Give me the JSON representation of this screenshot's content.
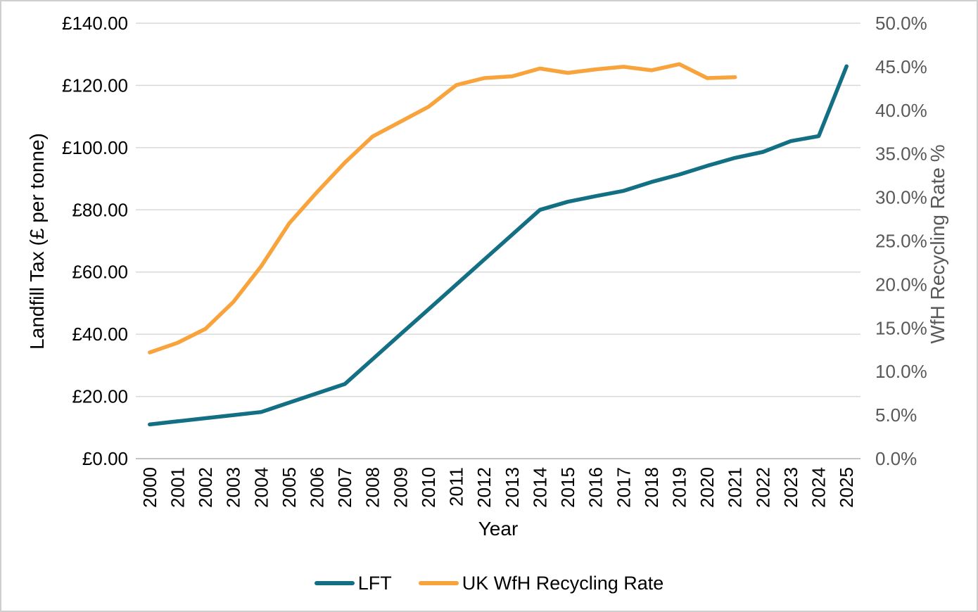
{
  "chart_data": {
    "type": "line",
    "x_categories": [
      "2000",
      "2001",
      "2002",
      "2003",
      "2004",
      "2005",
      "2006",
      "2007",
      "2008",
      "2009",
      "2010",
      "2011",
      "2012",
      "2013",
      "2014",
      "2015",
      "2016",
      "2017",
      "2018",
      "2019",
      "2020",
      "2021",
      "2022",
      "2023",
      "2024",
      "2025"
    ],
    "series": [
      {
        "name": "LFT",
        "axis": "left",
        "color": "#136F83",
        "values": [
          11.0,
          12.0,
          13.0,
          14.0,
          15.0,
          18.0,
          21.0,
          24.0,
          32.0,
          40.0,
          48.0,
          56.0,
          64.0,
          72.0,
          80.0,
          82.6,
          84.4,
          86.1,
          88.95,
          91.35,
          94.15,
          96.7,
          98.6,
          102.1,
          103.7,
          126.15
        ]
      },
      {
        "name": "UK WfH Recycling Rate",
        "axis": "right",
        "color": "#F8A33C",
        "values": [
          12.2,
          13.3,
          14.9,
          18.0,
          22.1,
          27.0,
          30.6,
          34.0,
          37.0,
          38.7,
          40.4,
          42.9,
          43.7,
          43.9,
          44.8,
          44.3,
          44.7,
          45.0,
          44.6,
          45.3,
          43.7,
          43.8
        ]
      }
    ],
    "left_axis": {
      "title": "Landfill Tax (£ per tonne)",
      "min": 0,
      "max": 140,
      "step": 20,
      "tick_labels": [
        "£0.00",
        "£20.00",
        "£40.00",
        "£60.00",
        "£80.00",
        "£100.00",
        "£120.00",
        "£140.00"
      ]
    },
    "right_axis": {
      "title": "WfH Recycling Rate %",
      "min": 0,
      "max": 50,
      "step": 5,
      "tick_labels": [
        "0.0%",
        "5.0%",
        "10.0%",
        "15.0%",
        "20.0%",
        "25.0%",
        "30.0%",
        "35.0%",
        "40.0%",
        "45.0%",
        "50.0%"
      ]
    },
    "x_axis": {
      "title": "Year"
    },
    "legend": {
      "position": "bottom",
      "items": [
        "LFT",
        "UK WfH Recycling Rate"
      ]
    },
    "grid": "horizontal",
    "colors": {
      "gridline": "#D9D9D9",
      "axis_line": "#C3C3C3",
      "left_text": "#000000",
      "right_text": "#595959",
      "x_text": "#000000"
    }
  }
}
